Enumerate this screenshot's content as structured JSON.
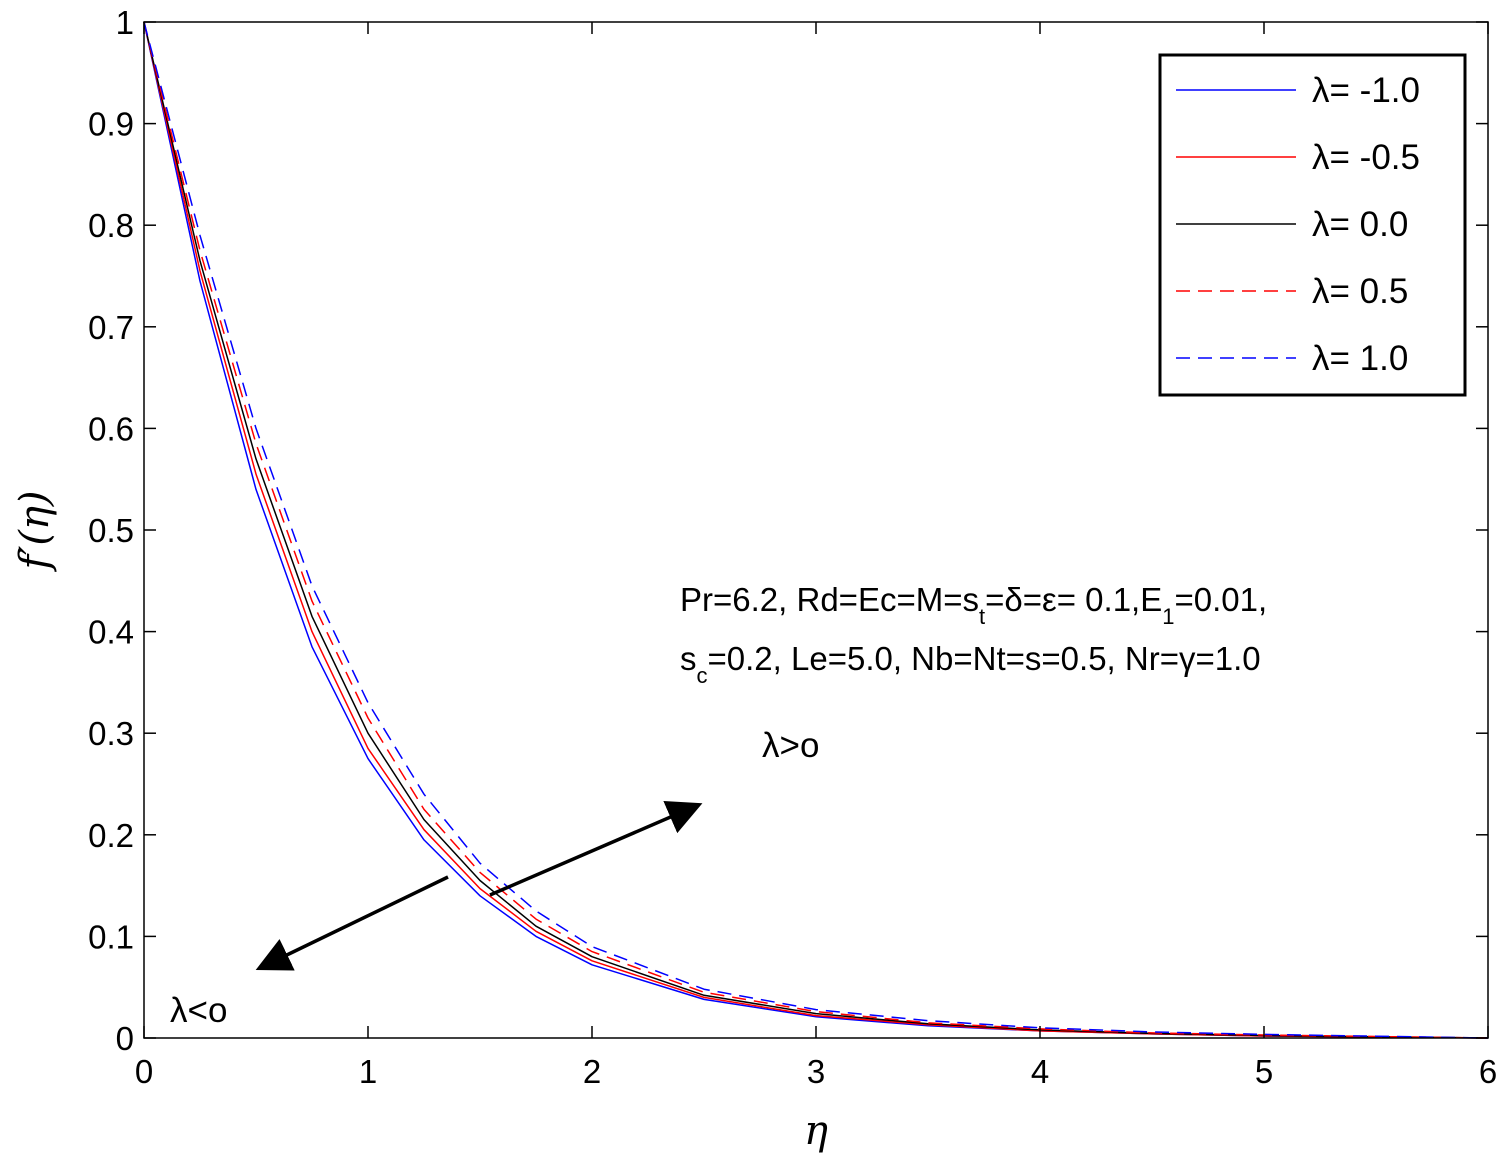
{
  "chart_data": {
    "type": "line",
    "xlabel": "η",
    "ylabel": "f′(η)",
    "xlim": [
      0,
      6
    ],
    "ylim": [
      0,
      1
    ],
    "xticks": [
      "0",
      "1",
      "2",
      "3",
      "4",
      "5",
      "6"
    ],
    "yticks": [
      "0",
      "0.1",
      "0.2",
      "0.3",
      "0.4",
      "0.5",
      "0.6",
      "0.7",
      "0.8",
      "0.9",
      "1"
    ],
    "grid": false,
    "legend_position": "top-right",
    "x": [
      0,
      0.25,
      0.5,
      0.75,
      1.0,
      1.25,
      1.5,
      1.75,
      2.0,
      2.5,
      3.0,
      3.5,
      4.0,
      4.5,
      5.0,
      5.5,
      6.0
    ],
    "series": [
      {
        "name": "λ= -1.0",
        "color": "#0000ff",
        "dash": "solid",
        "values": [
          1.0,
          0.745,
          0.54,
          0.385,
          0.275,
          0.195,
          0.14,
          0.1,
          0.072,
          0.038,
          0.021,
          0.012,
          0.007,
          0.004,
          0.002,
          0.001,
          0.0
        ]
      },
      {
        "name": "λ= -0.5",
        "color": "#ff0000",
        "dash": "solid",
        "values": [
          1.0,
          0.755,
          0.555,
          0.4,
          0.285,
          0.205,
          0.147,
          0.105,
          0.076,
          0.04,
          0.022,
          0.013,
          0.007,
          0.004,
          0.002,
          0.001,
          0.0
        ]
      },
      {
        "name": "λ= 0.0",
        "color": "#000000",
        "dash": "solid",
        "values": [
          1.0,
          0.765,
          0.57,
          0.415,
          0.3,
          0.215,
          0.155,
          0.11,
          0.08,
          0.042,
          0.024,
          0.014,
          0.008,
          0.0045,
          0.0025,
          0.0012,
          0.0
        ]
      },
      {
        "name": "λ= 0.5",
        "color": "#ff0000",
        "dash": "dashed",
        "values": [
          1.0,
          0.775,
          0.585,
          0.43,
          0.315,
          0.225,
          0.163,
          0.117,
          0.085,
          0.045,
          0.026,
          0.015,
          0.009,
          0.005,
          0.003,
          0.0015,
          0.0
        ]
      },
      {
        "name": "λ= 1.0",
        "color": "#0000ff",
        "dash": "dashed",
        "values": [
          1.0,
          0.79,
          0.6,
          0.445,
          0.33,
          0.24,
          0.172,
          0.125,
          0.09,
          0.048,
          0.028,
          0.017,
          0.01,
          0.006,
          0.0035,
          0.0018,
          0.0
        ]
      }
    ],
    "annotations": {
      "params_line1": "Pr=6.2, Rd=Ec=M=s",
      "params_line1_sub_t": "t",
      "params_line1_rest": "=δ=ε= 0.1,E",
      "params_line1_sub_1": "1",
      "params_line1_end": "=0.01,",
      "params_line2_s": "s",
      "params_line2_sub_c": "c",
      "params_line2_rest": "=0.2, Le=5.0, Nb=Nt=s=0.5, Nr=γ=1.0",
      "arrow_up_label": "λ>o",
      "arrow_down_label": "λ<o"
    }
  }
}
